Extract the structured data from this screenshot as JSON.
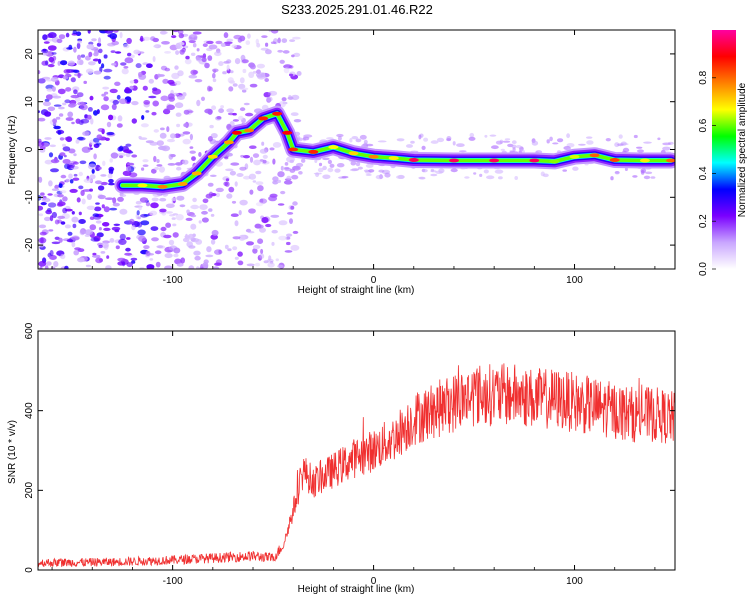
{
  "title": "S233.2025.291.01.46.R22",
  "chart_data": [
    {
      "type": "heatmap",
      "name": "spectrogram",
      "xlabel": "Height of straight line (km)",
      "ylabel": "Frequency (Hz)",
      "xlim": [
        -167,
        150
      ],
      "ylim": [
        -25,
        25
      ],
      "xticks": [
        -100,
        0,
        100
      ],
      "yticks": [
        -20,
        -10,
        0,
        10,
        20
      ],
      "colorbar": {
        "label": "Normalized spectral amplitude",
        "range": [
          0,
          1
        ],
        "ticks": [
          "0.0",
          "0.2",
          "0.4",
          "0.6",
          "0.8"
        ],
        "tick_values": [
          0,
          0.2,
          0.4,
          0.6,
          0.8
        ],
        "colors": [
          "#ffffff",
          "#c9a6ff",
          "#7a00ff",
          "#0000ff",
          "#00ffff",
          "#00ff00",
          "#ffff00",
          "#ff8000",
          "#ff0000",
          "#ff00a0"
        ]
      },
      "ridge": [
        [
          -125,
          -7.5
        ],
        [
          -115,
          -7.5
        ],
        [
          -105,
          -7.8
        ],
        [
          -95,
          -7.2
        ],
        [
          -88,
          -5
        ],
        [
          -80,
          -1.5
        ],
        [
          -72,
          1.5
        ],
        [
          -68,
          3.5
        ],
        [
          -62,
          4
        ],
        [
          -55,
          6.5
        ],
        [
          -48,
          7.5
        ],
        [
          -43,
          3.5
        ],
        [
          -40,
          0
        ],
        [
          -30,
          -0.5
        ],
        [
          -20,
          0.5
        ],
        [
          -10,
          -0.8
        ],
        [
          0,
          -1.5
        ],
        [
          10,
          -1.8
        ],
        [
          20,
          -2.2
        ],
        [
          40,
          -2.3
        ],
        [
          60,
          -2.3
        ],
        [
          80,
          -2.3
        ],
        [
          90,
          -2.5
        ],
        [
          100,
          -1.5
        ],
        [
          110,
          -1.2
        ],
        [
          120,
          -2.2
        ],
        [
          135,
          -2.3
        ],
        [
          148,
          -2.3
        ]
      ],
      "ridge_peak_amplitude": 0.95
    },
    {
      "type": "line",
      "name": "snr",
      "xlabel": "Height of straight line (km)",
      "ylabel": "SNR (10 * v/v)",
      "xlim": [
        -167,
        150
      ],
      "ylim": [
        0,
        600
      ],
      "xticks": [
        -100,
        0,
        100
      ],
      "yticks": [
        0,
        200,
        400,
        600
      ],
      "series": [
        {
          "name": "SNR",
          "color": "#f03030",
          "envelope_x": [
            -167,
            -130,
            -100,
            -80,
            -60,
            -50,
            -45,
            -40,
            -35,
            -30,
            -20,
            -10,
            0,
            10,
            20,
            30,
            40,
            50,
            60,
            70,
            80,
            90,
            100,
            110,
            120,
            130,
            140,
            150
          ],
          "envelope_y": [
            18,
            20,
            25,
            30,
            35,
            30,
            60,
            150,
            250,
            220,
            250,
            280,
            300,
            330,
            380,
            400,
            420,
            440,
            440,
            440,
            430,
            430,
            420,
            410,
            400,
            390,
            390,
            380
          ]
        }
      ]
    }
  ]
}
